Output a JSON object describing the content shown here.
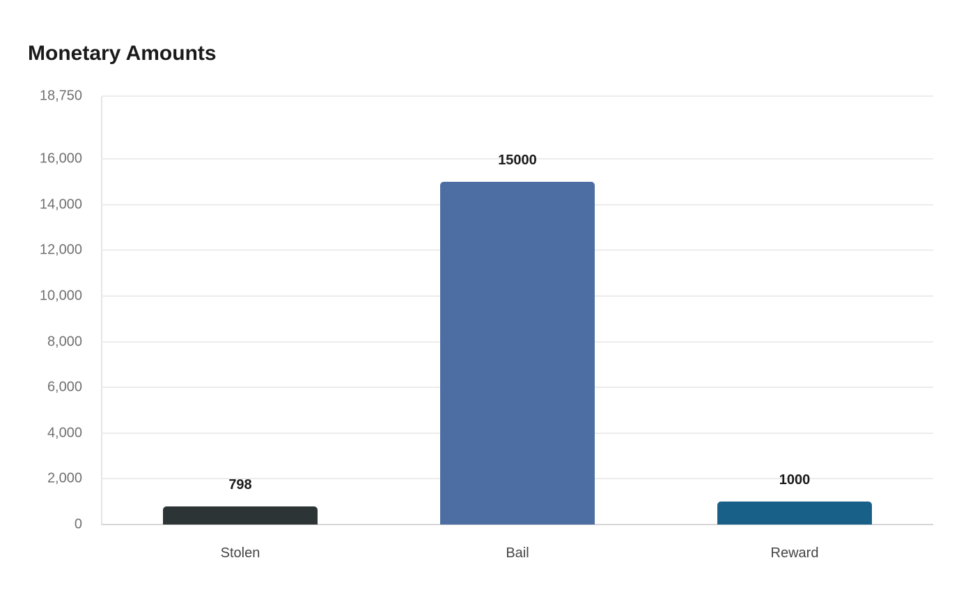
{
  "title": "Monetary Amounts",
  "chart_data": {
    "type": "bar",
    "title": "Monetary Amounts",
    "xlabel": "",
    "ylabel": "",
    "categories": [
      "Stolen",
      "Bail",
      "Reward"
    ],
    "values": [
      798,
      15000,
      1000
    ],
    "colors": [
      "#2d3436",
      "#4c6ea3",
      "#186087"
    ],
    "ylim": [
      0,
      18750
    ],
    "yticks": [
      0,
      2000,
      4000,
      6000,
      8000,
      10000,
      12000,
      14000,
      16000,
      18750
    ],
    "ytick_labels": [
      "0",
      "2,000",
      "4,000",
      "6,000",
      "8,000",
      "10,000",
      "12,000",
      "14,000",
      "16,000",
      "18,750"
    ],
    "data_labels": [
      "798",
      "15000",
      "1000"
    ],
    "grid": true,
    "legend": null
  }
}
